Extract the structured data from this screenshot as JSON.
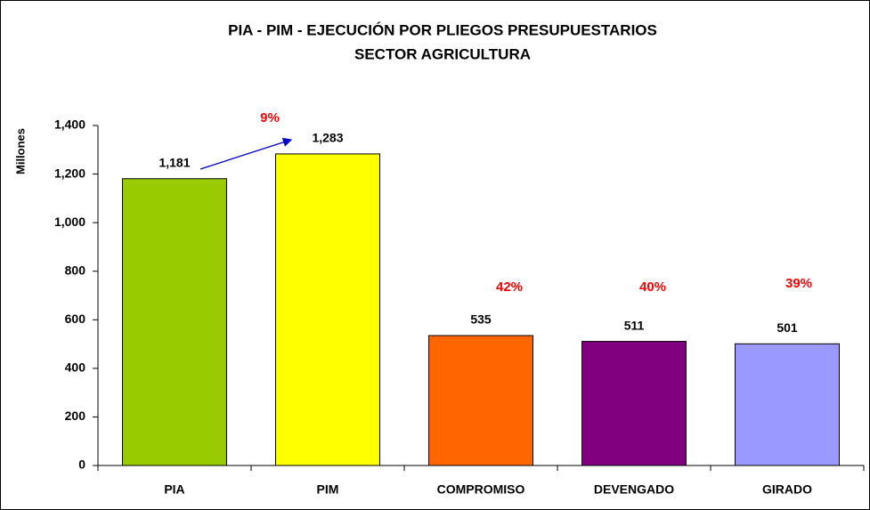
{
  "chart_data": {
    "type": "bar",
    "title": [
      "PIA - PIM - EJECUCIÓN POR PLIEGOS PRESUPUESTARIOS",
      "SECTOR AGRICULTURA"
    ],
    "y_label": "Millones",
    "categories": [
      "PIA",
      "PIM",
      "COMPROMISO",
      "DEVENGADO",
      "GIRADO"
    ],
    "values": [
      1181,
      1283,
      535,
      511,
      501
    ],
    "value_labels": [
      "1,181",
      "1,283",
      "535",
      "511",
      "501"
    ],
    "colors": [
      "#99cc00",
      "#ffff00",
      "#ff6600",
      "#800080",
      "#9999ff"
    ],
    "annotations": [
      "9%",
      "42%",
      "40%",
      "39%"
    ],
    "ylim": [
      0,
      1400
    ],
    "yticks": [
      0,
      200,
      400,
      600,
      800,
      {
        "value": 1000,
        "label": "1,000"
      },
      {
        "value": 1200,
        "label": "1,200"
      },
      {
        "value": 1400,
        "label": "1,400"
      }
    ],
    "grid": false
  }
}
